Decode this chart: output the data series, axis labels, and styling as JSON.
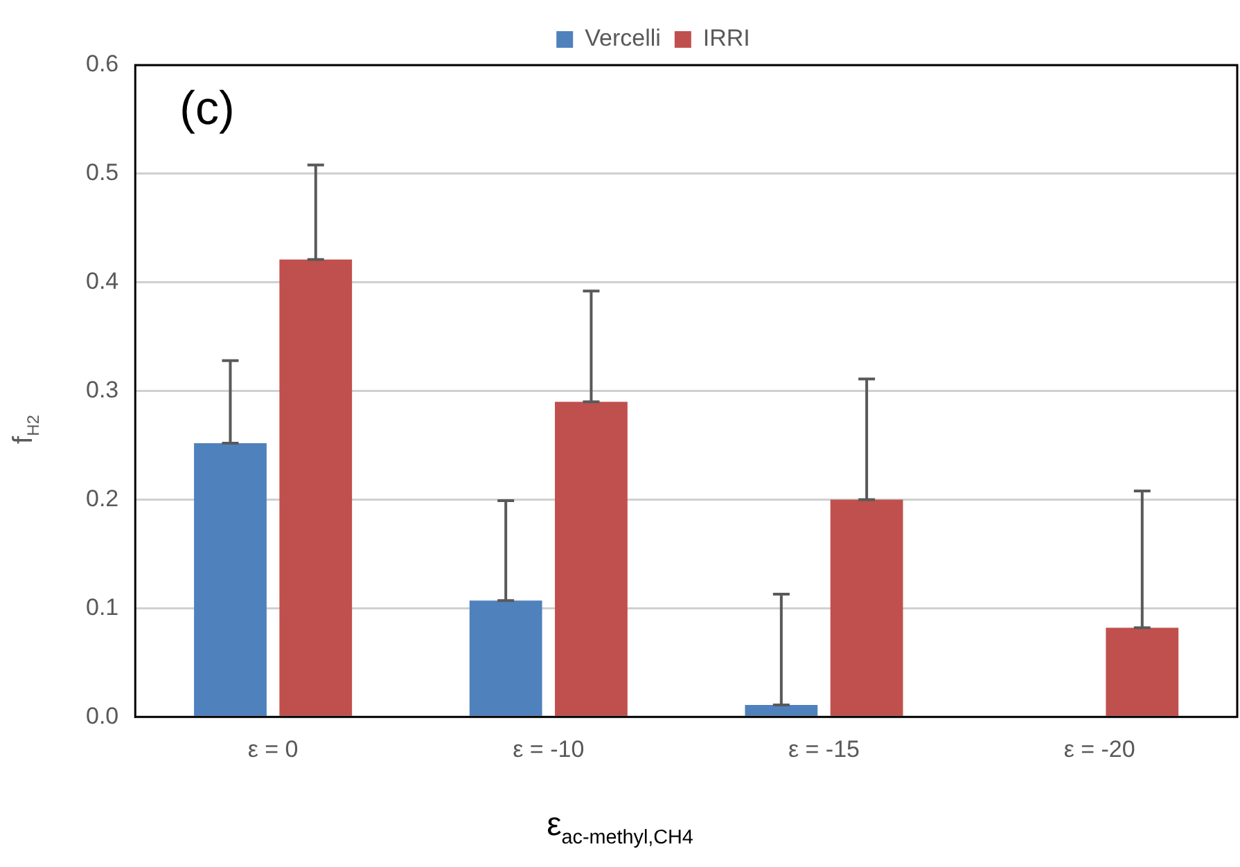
{
  "chart_data": {
    "type": "bar",
    "xlabel": "ε$_{ac-methyl,CH4}$",
    "ylabel": "f$_{H2}$",
    "annotations": [
      "(c)"
    ],
    "categories": [
      "ε = 0",
      "ε = -10",
      "ε = -15",
      "ε = -20"
    ],
    "series": [
      {
        "name": "Vercelli",
        "color": "#4f81bd",
        "values": [
          0.252,
          0.107,
          0.011,
          null
        ],
        "errors": [
          [
            0.252,
            0.328
          ],
          [
            0.107,
            0.199
          ],
          [
            0.011,
            0.113
          ],
          null
        ]
      },
      {
        "name": "IRRI",
        "color": "#c0504d",
        "values": [
          0.421,
          0.29,
          0.2,
          0.082
        ],
        "errors": [
          [
            0.421,
            0.508
          ],
          [
            0.29,
            0.392
          ],
          [
            0.2,
            0.311
          ],
          [
            0.082,
            0.208
          ]
        ]
      }
    ],
    "ylim": [
      0,
      0.6
    ],
    "yticks": [
      {
        "value": 0,
        "label": "0.0"
      },
      {
        "value": 0.1,
        "label": "0.1"
      },
      {
        "value": 0.2,
        "label": "0.2"
      },
      {
        "value": 0.3,
        "label": "0.3"
      },
      {
        "value": 0.4,
        "label": "0.4"
      },
      {
        "value": 0.5,
        "label": "0.5"
      },
      {
        "value": 0.6,
        "label": "0.6"
      }
    ],
    "grid": "y",
    "legend": "top"
  }
}
